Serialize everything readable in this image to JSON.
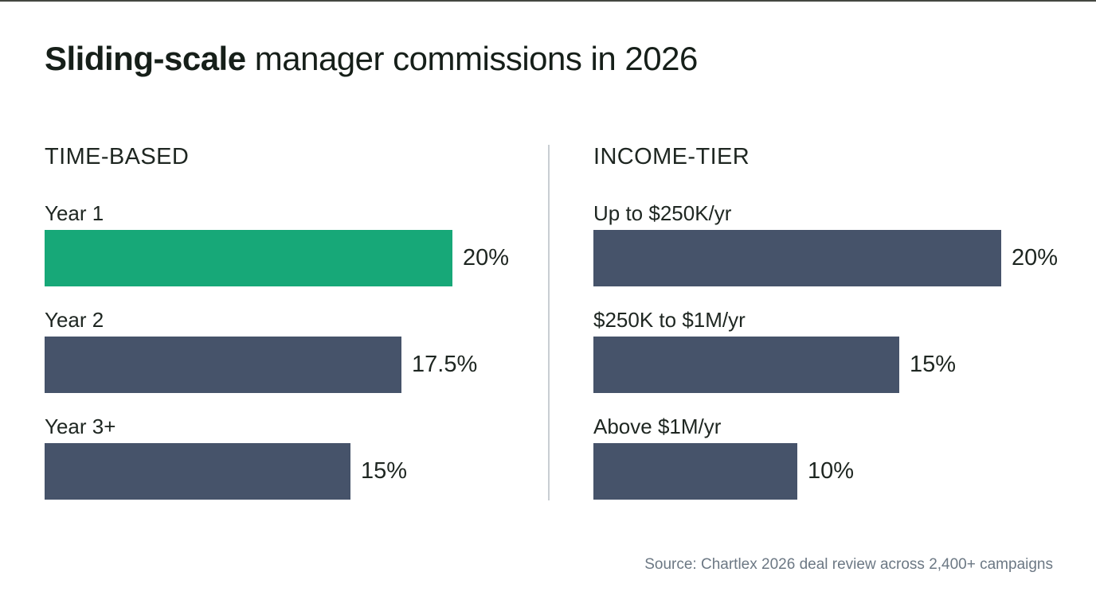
{
  "title": {
    "bold": "Sliding-scale",
    "rest": " manager commissions in 2026"
  },
  "source": "Source: Chartlex 2026 deal review across 2,400+ campaigns",
  "colors": {
    "highlight_bar": "#17A878",
    "default_bar": "#46536A",
    "title_text": "#161F19",
    "body_text": "#1E2621",
    "muted_text": "#6C7884",
    "divider": "#C9CED3",
    "background": "#FFFFFF"
  },
  "chart_data": [
    {
      "type": "bar",
      "orientation": "horizontal",
      "title": "TIME-BASED",
      "categories": [
        "Year 1",
        "Year 2",
        "Year 3+"
      ],
      "values": [
        20,
        17.5,
        15
      ],
      "value_labels": [
        "20%",
        "17.5%",
        "15%"
      ],
      "unit": "%",
      "xlim": [
        0,
        20
      ],
      "highlight_index": 0,
      "grid": false,
      "legend": false
    },
    {
      "type": "bar",
      "orientation": "horizontal",
      "title": "INCOME-TIER",
      "categories": [
        "Up to $250K/yr",
        "$250K to $1M/yr",
        "Above $1M/yr"
      ],
      "values": [
        20,
        15,
        10
      ],
      "value_labels": [
        "20%",
        "15%",
        "10%"
      ],
      "unit": "%",
      "xlim": [
        0,
        20
      ],
      "highlight_index": -1,
      "grid": false,
      "legend": false
    }
  ]
}
